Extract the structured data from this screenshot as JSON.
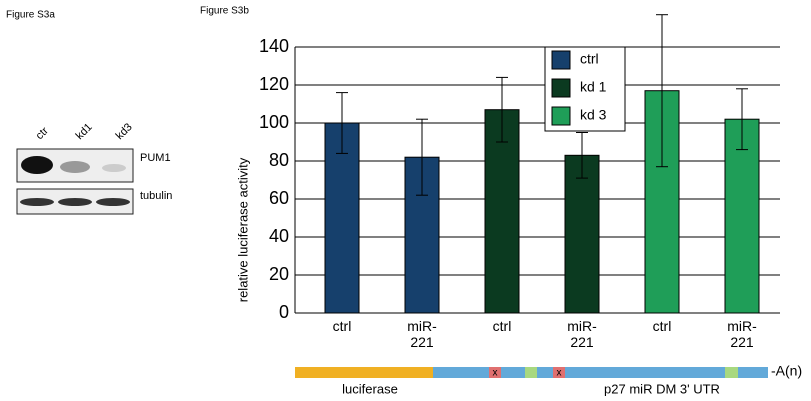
{
  "figure_s3a": {
    "label": "Figure S3a",
    "lanes": [
      "ctr",
      "kd1",
      "kd3"
    ],
    "rows": [
      "PUM1",
      "tubulin"
    ]
  },
  "chart_data": {
    "type": "bar",
    "panel_label": "Figure S3b",
    "y_label": "relative luciferase activity",
    "categories": [
      "ctrl",
      "miR-221"
    ],
    "series": [
      {
        "name": "ctrl",
        "color": "#16406c",
        "values": [
          100,
          82
        ],
        "errors": [
          16,
          20
        ]
      },
      {
        "name": "kd 1",
        "color": "#0b3a20",
        "values": [
          107,
          83
        ],
        "errors": [
          17,
          12
        ]
      },
      {
        "name": "kd 3",
        "color": "#1f9e58",
        "values": [
          117,
          102
        ],
        "errors": [
          40,
          16
        ]
      }
    ],
    "ylim": [
      0,
      140
    ],
    "yticks": [
      0,
      20,
      40,
      60,
      80,
      100,
      120,
      140
    ],
    "grid": true
  },
  "construct": {
    "luciferase": "luciferase",
    "utr": "p27 miR DM 3' UTR",
    "tail": "-A(n)",
    "site": "x"
  }
}
